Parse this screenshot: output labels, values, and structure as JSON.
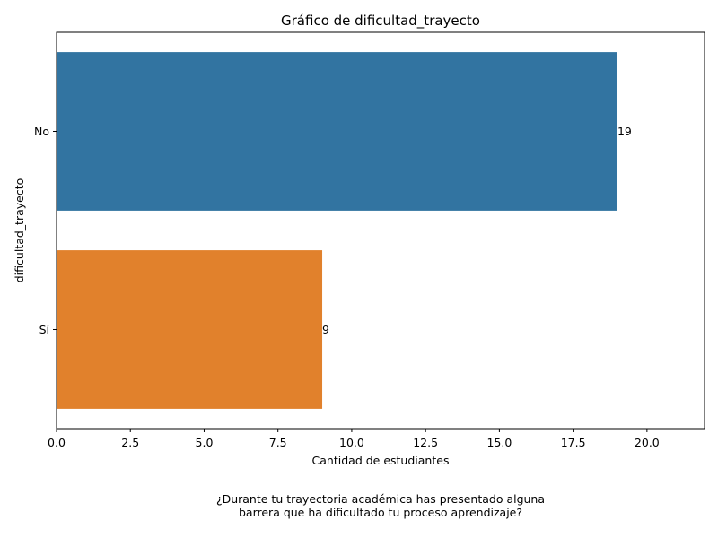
{
  "chart_data": {
    "type": "bar",
    "orientation": "horizontal",
    "title": "Gráfico de dificultad_trayecto",
    "xlabel": "Cantidad de estudiantes",
    "ylabel": "dificultad_trayecto",
    "categories": [
      "No",
      "Sí"
    ],
    "values": [
      19,
      9
    ],
    "value_labels": [
      "19",
      "9"
    ],
    "colors": [
      "#3274a1",
      "#e1812c"
    ],
    "xlim": [
      0,
      21.95
    ],
    "xticks": [
      0.0,
      2.5,
      5.0,
      7.5,
      10.0,
      12.5,
      15.0,
      17.5,
      20.0
    ],
    "xtick_labels": [
      "0.0",
      "2.5",
      "5.0",
      "7.5",
      "10.0",
      "12.5",
      "15.0",
      "17.5",
      "20.0"
    ],
    "grid": false,
    "legend": "none"
  },
  "caption": {
    "line1": "¿Durante tu trayectoria académica has presentado alguna",
    "line2": "barrera que ha dificultado tu proceso aprendizaje?"
  }
}
